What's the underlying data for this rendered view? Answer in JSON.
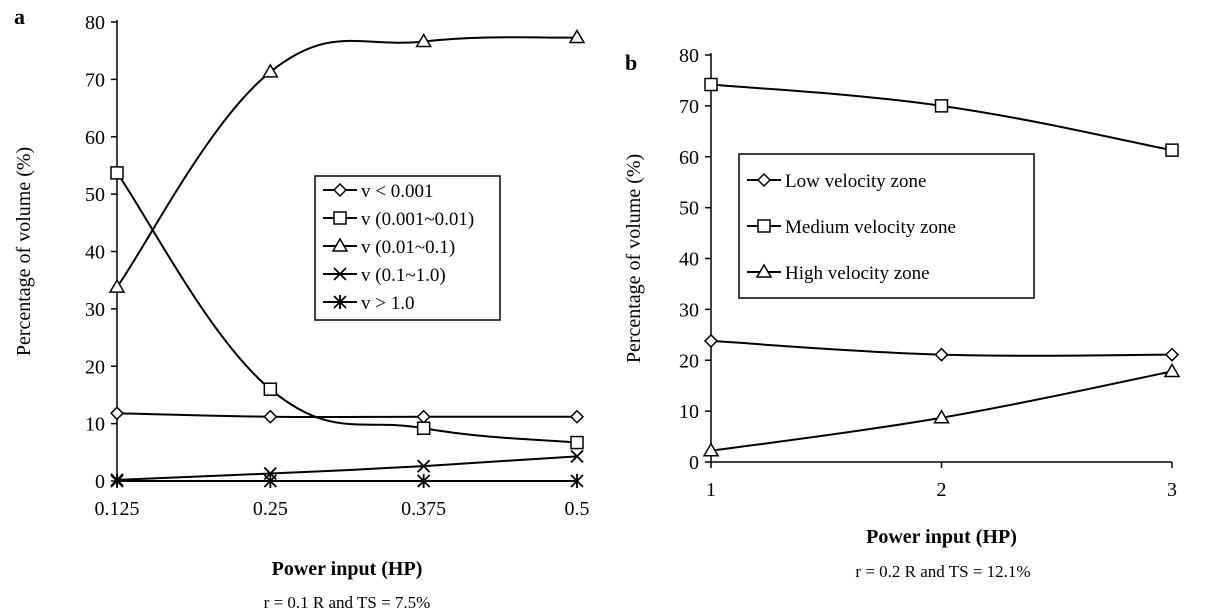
{
  "chart_data": [
    {
      "panel": "a",
      "type": "line",
      "x": [
        0.125,
        0.25,
        0.375,
        0.5
      ],
      "xticks": [
        "0.125",
        "0.25",
        "0.375",
        "0.5"
      ],
      "xlabel": "Power input (HP)",
      "ylabel": "Percentage of volume (%)",
      "ylim": [
        0,
        80
      ],
      "yticks": [
        "0",
        "10",
        "20",
        "30",
        "40",
        "50",
        "60",
        "70",
        "80"
      ],
      "caption": "r = 0.1 R and TS = 7.5%",
      "legend_position": "center-right",
      "series": [
        {
          "name": "v < 0.001",
          "marker": "diamond",
          "values": [
            11.8,
            11.2,
            11.2,
            11.2
          ]
        },
        {
          "name": "v (0.001~0.01)",
          "marker": "square",
          "values": [
            53.7,
            16.0,
            9.2,
            6.7
          ]
        },
        {
          "name": "v (0.01~0.1)",
          "marker": "triangle",
          "values": [
            33.8,
            71.3,
            76.6,
            77.3
          ]
        },
        {
          "name": "v (0.1~1.0)",
          "marker": "x",
          "values": [
            0.2,
            1.3,
            2.6,
            4.3
          ]
        },
        {
          "name": "v > 1.0",
          "marker": "star",
          "values": [
            0.0,
            0.0,
            0.0,
            0.0
          ]
        }
      ]
    },
    {
      "panel": "b",
      "type": "line",
      "x": [
        1,
        2,
        3
      ],
      "xticks": [
        "1",
        "2",
        "3"
      ],
      "xlabel": "Power input (HP)",
      "ylabel": "Percentage of volume (%)",
      "ylim": [
        0,
        80
      ],
      "yticks": [
        "0",
        "10",
        "20",
        "30",
        "40",
        "50",
        "60",
        "70",
        "80"
      ],
      "caption": "r = 0.2 R and TS = 12.1%",
      "legend_position": "center-left",
      "series": [
        {
          "name": "Low velocity zone",
          "marker": "diamond",
          "values": [
            23.8,
            21.1,
            21.1
          ]
        },
        {
          "name": "Medium velocity zone",
          "marker": "square",
          "values": [
            74.2,
            70.0,
            61.3
          ]
        },
        {
          "name": "High velocity zone",
          "marker": "triangle",
          "values": [
            2.2,
            8.7,
            17.8
          ]
        }
      ]
    }
  ]
}
